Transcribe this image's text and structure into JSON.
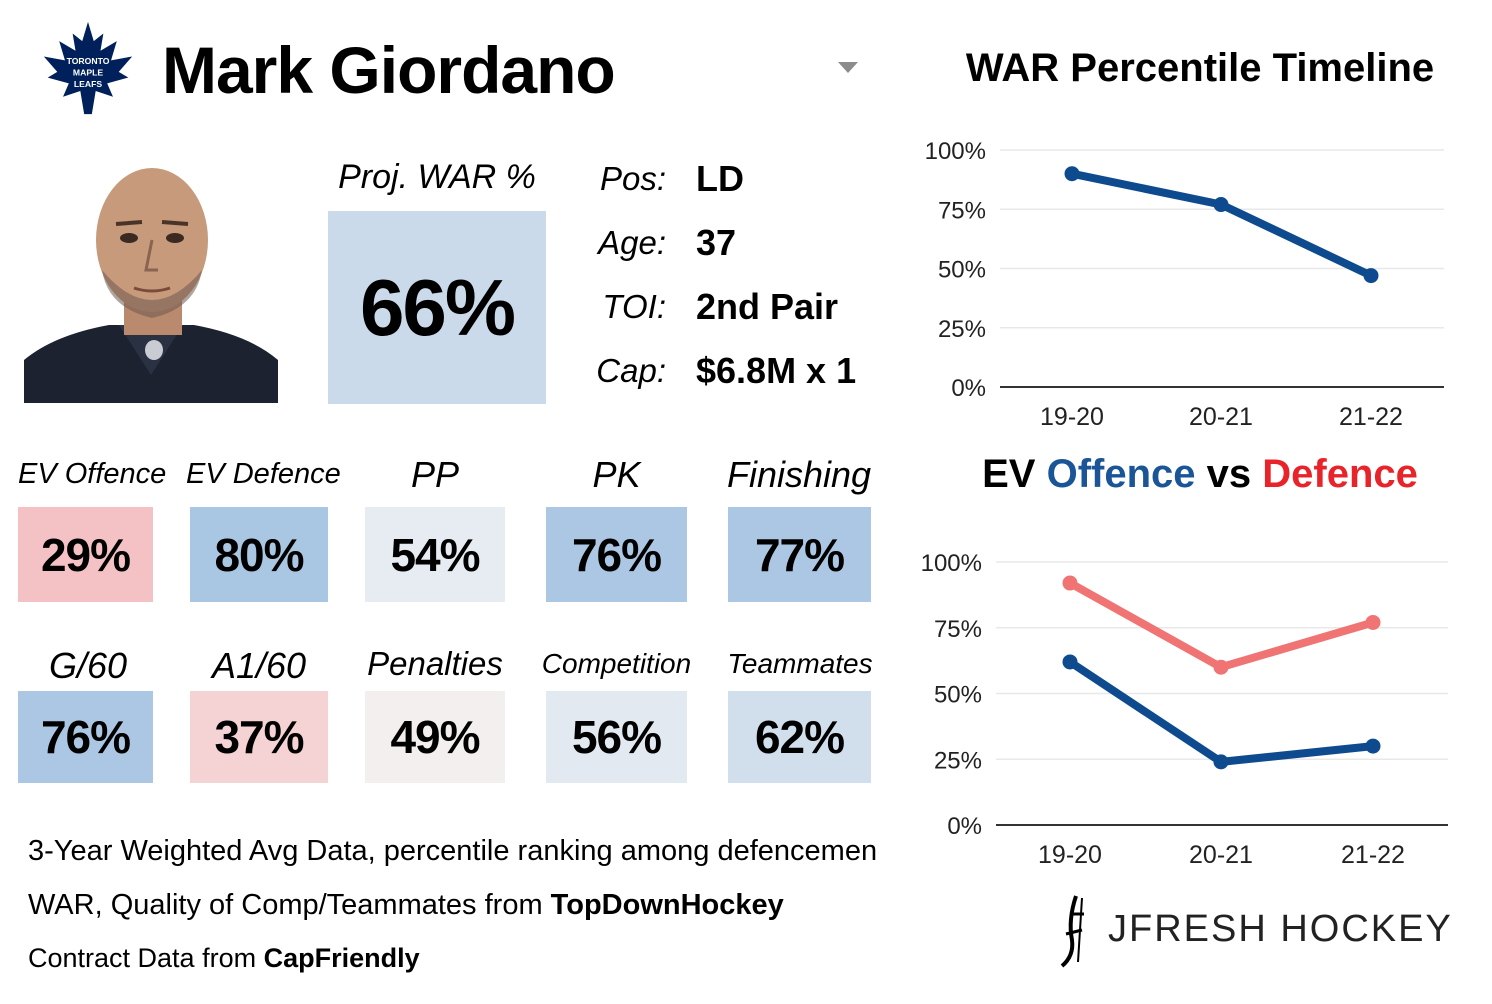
{
  "header": {
    "player_name": "Mark Giordano",
    "team_logo": {
      "icon": "maple-leaf-logo",
      "text": "TORONTO MAPLE LEAFS",
      "color": "#00205B"
    }
  },
  "projection": {
    "label": "Proj. WAR %",
    "value": "66%",
    "color": "#cadaea"
  },
  "info": [
    {
      "key": "Pos:",
      "value": "LD"
    },
    {
      "key": "Age:",
      "value": "37"
    },
    {
      "key": "TOI:",
      "value": "2nd Pair"
    },
    {
      "key": "Cap:",
      "value": "$6.8M x 1"
    }
  ],
  "stats": [
    {
      "label": "EV Offence",
      "value": "29%",
      "color": "#f4c2c4"
    },
    {
      "label": "EV Defence",
      "value": "80%",
      "color": "#a9c6e2"
    },
    {
      "label": "PP",
      "value": "54%",
      "color": "#e6ecf2"
    },
    {
      "label": "PK",
      "value": "76%",
      "color": "#abc7e3"
    },
    {
      "label": "Finishing",
      "value": "77%",
      "color": "#abc7e3"
    },
    {
      "label": "G/60",
      "value": "76%",
      "color": "#abc7e3"
    },
    {
      "label": "A1/60",
      "value": "37%",
      "color": "#f5d2d4"
    },
    {
      "label": "Penalties",
      "value": "49%",
      "color": "#f3efef"
    },
    {
      "label": "Competition",
      "value": "56%",
      "color": "#e2e9f1"
    },
    {
      "label": "Teammates",
      "value": "62%",
      "color": "#d1deeb"
    }
  ],
  "notes": {
    "line1": "3-Year Weighted Avg Data, percentile ranking among defencemen",
    "line2_prefix": "WAR, Quality of Comp/Teammates from ",
    "line2_bold": "TopDownHockey",
    "line3_prefix": "Contract Data from ",
    "line3_bold": "CapFriendly"
  },
  "brand": {
    "text": "JFRESH HOCKEY",
    "icon": "jfresh-logo-icon"
  },
  "chart_data": [
    {
      "type": "line",
      "title": "WAR Percentile Timeline",
      "categories": [
        "19-20",
        "20-21",
        "21-22"
      ],
      "series": [
        {
          "values": [
            90,
            77,
            47
          ],
          "color": "#0e4b8e"
        }
      ],
      "ylim": [
        0,
        100
      ],
      "yticks": [
        "0%",
        "25%",
        "50%",
        "75%",
        "100%"
      ],
      "grid": true
    },
    {
      "type": "line",
      "title_parts": [
        {
          "text": "EV ",
          "color": "#000000"
        },
        {
          "text": "Offence",
          "color": "#1a5597"
        },
        {
          "text": " vs ",
          "color": "#000000"
        },
        {
          "text": "Defence",
          "color": "#e8242a"
        }
      ],
      "categories": [
        "19-20",
        "20-21",
        "21-22"
      ],
      "series": [
        {
          "values": [
            92,
            60,
            77
          ],
          "color": "#f07474"
        },
        {
          "values": [
            62,
            24,
            30
          ],
          "color": "#0e4b8e"
        }
      ],
      "ylim": [
        0,
        100
      ],
      "yticks": [
        "0%",
        "25%",
        "50%",
        "75%",
        "100%"
      ],
      "grid": true
    }
  ]
}
